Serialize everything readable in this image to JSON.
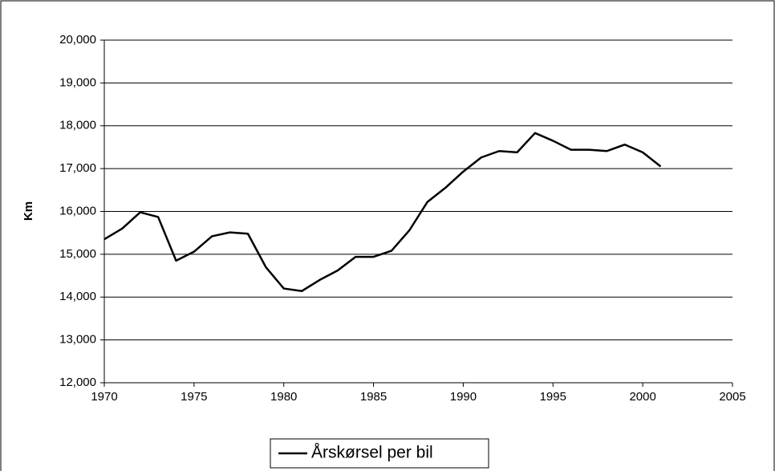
{
  "chart_data": {
    "type": "line",
    "y_label": "Km",
    "x": [
      1970,
      1971,
      1972,
      1973,
      1974,
      1975,
      1976,
      1977,
      1978,
      1979,
      1980,
      1981,
      1982,
      1983,
      1984,
      1985,
      1986,
      1987,
      1988,
      1989,
      1990,
      1991,
      1992,
      1993,
      1994,
      1995,
      1996,
      1997,
      1998,
      1999,
      2000,
      2001
    ],
    "series": [
      {
        "name": "Årskørsel per bil",
        "color": "#000000",
        "values": [
          15350,
          15600,
          15980,
          15870,
          14850,
          15060,
          15420,
          15510,
          15480,
          14700,
          14200,
          14140,
          14400,
          14620,
          14940,
          14940,
          15080,
          15560,
          16220,
          16550,
          16930,
          17260,
          17410,
          17380,
          17830,
          17650,
          17440,
          17440,
          17410,
          17560,
          17380,
          17050
        ]
      }
    ],
    "xlim": [
      1970,
      2005
    ],
    "xticks": [
      1970,
      1975,
      1980,
      1985,
      1990,
      1995,
      2000,
      2005
    ],
    "ylim": [
      12000,
      20000
    ],
    "yticks": [
      {
        "value": 12000,
        "label": "12,000"
      },
      {
        "value": 13000,
        "label": "13,000"
      },
      {
        "value": 14000,
        "label": "14,000"
      },
      {
        "value": 15000,
        "label": "15,000"
      },
      {
        "value": 16000,
        "label": "16,000"
      },
      {
        "value": 17000,
        "label": "17,000"
      },
      {
        "value": 18000,
        "label": "18,000"
      },
      {
        "value": 19000,
        "label": "19,000"
      },
      {
        "value": 20000,
        "label": "20,000"
      }
    ],
    "grid": true,
    "legend": "bottom"
  }
}
